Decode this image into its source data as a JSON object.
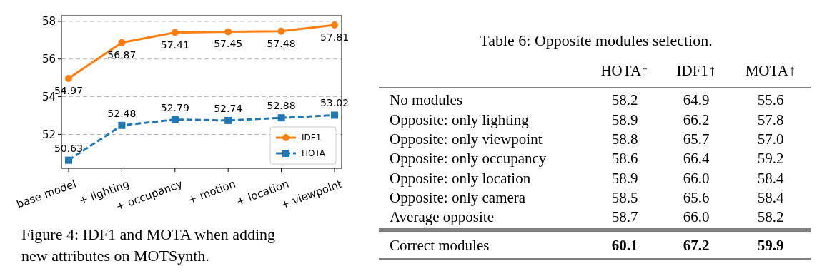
{
  "chart_data": [
    {
      "type": "line",
      "categories": [
        "base model",
        "+ lighting",
        "+ occupancy",
        "+ motion",
        "+ location",
        "+ viewpoint"
      ],
      "series": [
        {
          "name": "IDF1",
          "color": "#ff7f0e",
          "marker": "circle",
          "line_style": "solid",
          "values": [
            54.97,
            56.87,
            57.41,
            57.45,
            57.48,
            57.81
          ]
        },
        {
          "name": "HOTA",
          "color": "#1f77b4",
          "marker": "square",
          "line_style": "dashed",
          "values": [
            50.63,
            52.48,
            52.79,
            52.74,
            52.88,
            53.02
          ]
        }
      ],
      "ylim": [
        50.2,
        58.3
      ],
      "yticks": [
        52,
        54,
        56,
        58
      ],
      "grid": "y",
      "legend": "bottom right",
      "data_labels": true,
      "annotations": [
        "Figure 4: IDF1 and MOTA when adding new attributes on MOTSynth."
      ]
    },
    {
      "type": "heatmap",
      "title": "Table 6: Opposite modules selection.",
      "categories": [
        "HOTA↑",
        "IDF1↑",
        "MOTA↑"
      ],
      "y_categories": [
        "No modules",
        "Opposite: only lighting",
        "Opposite: only viewpoint",
        "Opposite: only occupancy",
        "Opposite: only location",
        "Opposite: only camera",
        "Average opposite",
        "Correct modules"
      ],
      "cells": [
        [
          58.2,
          64.9,
          55.6
        ],
        [
          58.9,
          66.2,
          57.8
        ],
        [
          58.8,
          65.7,
          57.0
        ],
        [
          58.6,
          66.4,
          59.2
        ],
        [
          58.9,
          66.0,
          58.4
        ],
        [
          58.5,
          65.6,
          58.4
        ],
        [
          58.7,
          66.0,
          58.2
        ],
        [
          60.1,
          67.2,
          59.9
        ]
      ],
      "data_labels": true,
      "cell_labels": [
        [
          "58.2",
          "64.9",
          "55.6"
        ],
        [
          "58.9",
          "66.2",
          "57.8"
        ],
        [
          "58.8",
          "65.7",
          "57.0"
        ],
        [
          "58.6",
          "66.4",
          "59.2"
        ],
        [
          "58.9",
          "66.0",
          "58.4"
        ],
        [
          "58.5",
          "65.6",
          "58.4"
        ],
        [
          "58.7",
          "66.0",
          "58.2"
        ],
        [
          "60.1",
          "67.2",
          "59.9"
        ]
      ]
    }
  ]
}
